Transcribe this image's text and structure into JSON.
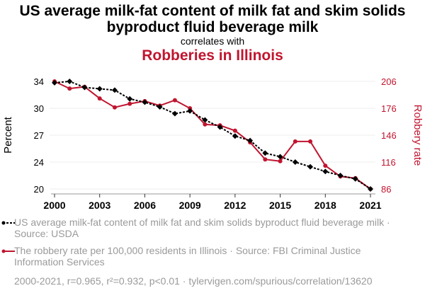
{
  "header": {
    "title": "US average milk-fat content of milk fat and skim solids byproduct fluid beverage milk",
    "subtitle": "correlates with",
    "title2": "Robberies in Illinois"
  },
  "colors": {
    "series1": "#000000",
    "series2": "#c0152f",
    "muted": "#9a9a9a"
  },
  "legend": [
    {
      "text": "US average milk-fat content of milk fat and skim solids byproduct fluid beverage milk · Source: USDA"
    },
    {
      "text": "The robbery rate per 100,000 residents in Illinois · Source: FBI Criminal Justice Information Services"
    }
  ],
  "footer": "2000-2021, r=0.965, r²=0.932, p<0.01 · tylervigen.com/spurious/correlation/13620",
  "chart_data": {
    "type": "line",
    "title": "US average milk-fat content of milk fat and skim solids byproduct fluid beverage milk correlates with Robberies in Illinois",
    "xlabel": "",
    "ylabel": "Percent",
    "y2label": "Robbery rate",
    "x": [
      2000,
      2001,
      2002,
      2003,
      2004,
      2005,
      2006,
      2007,
      2008,
      2009,
      2010,
      2011,
      2012,
      2013,
      2014,
      2015,
      2016,
      2017,
      2018,
      2019,
      2020,
      2021
    ],
    "xticks": [
      "2000",
      "2003",
      "2006",
      "2009",
      "2012",
      "2015",
      "2018",
      "2021"
    ],
    "yticks_left": [
      "34",
      "30",
      "27",
      "24",
      "20"
    ],
    "yticks_right": [
      "206",
      "176",
      "146",
      "116",
      "86"
    ],
    "grid": true,
    "series": [
      {
        "name": "US average milk-fat content of milk fat and skim solids byproduct fluid beverage milk",
        "axis": "left",
        "style": "dotted",
        "values": [
          33.8,
          34.0,
          33.1,
          32.9,
          32.7,
          31.4,
          30.9,
          30.2,
          29.4,
          29.7,
          28.7,
          27.9,
          26.9,
          26.4,
          25.0,
          24.6,
          24.0,
          23.3,
          22.6,
          22.0,
          21.5,
          20.0
        ]
      },
      {
        "name": "The robbery rate per 100,000 residents in Illinois",
        "axis": "right",
        "style": "solid",
        "values": [
          206,
          198,
          200,
          187,
          177,
          181,
          184,
          179,
          185,
          176,
          158,
          157,
          151,
          138,
          119,
          117,
          139,
          139,
          112,
          100,
          98,
          86
        ]
      }
    ]
  }
}
